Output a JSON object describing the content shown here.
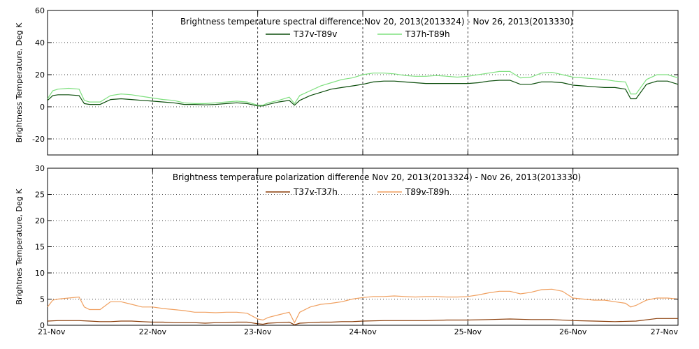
{
  "chart_data": [
    {
      "type": "line",
      "title": "Brightness temperature spectral difference     Nov 20, 2013(2013324) - Nov 26, 2013(2013330)",
      "ylabel": "Brightness Temperature, Deg K",
      "xlim": [
        0,
        6
      ],
      "ylim": [
        -30,
        60
      ],
      "yticks": [
        -20,
        0,
        20,
        40,
        60
      ],
      "xtick_labels": [
        "21-Nov",
        "22-Nov",
        "23-Nov",
        "24-Nov",
        "25-Nov",
        "26-Nov",
        "27-Nov"
      ],
      "grid": true,
      "series": [
        {
          "name": "T37v-T89v",
          "color": "#0b4d0b",
          "x": [
            0.0,
            0.05,
            0.1,
            0.2,
            0.3,
            0.35,
            0.4,
            0.5,
            0.6,
            0.7,
            0.8,
            0.9,
            1.0,
            1.1,
            1.2,
            1.3,
            1.4,
            1.5,
            1.6,
            1.7,
            1.8,
            1.9,
            2.0,
            2.05,
            2.1,
            2.2,
            2.3,
            2.35,
            2.4,
            2.5,
            2.6,
            2.7,
            2.8,
            2.9,
            3.0,
            3.1,
            3.2,
            3.3,
            3.4,
            3.5,
            3.6,
            3.7,
            3.8,
            3.9,
            4.0,
            4.1,
            4.2,
            4.3,
            4.4,
            4.5,
            4.6,
            4.7,
            4.8,
            4.9,
            5.0,
            5.1,
            5.2,
            5.3,
            5.4,
            5.5,
            5.55,
            5.6,
            5.7,
            5.8,
            5.9,
            6.0
          ],
          "values": [
            4,
            7,
            7.5,
            7.5,
            7,
            2,
            1.5,
            1.5,
            4.5,
            5,
            4.5,
            4,
            3.5,
            3,
            2.5,
            1.5,
            1.5,
            1.2,
            1.5,
            2,
            2.5,
            2,
            0.5,
            0.5,
            1.5,
            3,
            4,
            1,
            4,
            7,
            9,
            11,
            12,
            13,
            14,
            15.5,
            16,
            16,
            15.5,
            15,
            14.5,
            14.5,
            14.5,
            14.5,
            14.5,
            15,
            16,
            16.5,
            16.5,
            14,
            14,
            15.5,
            15.5,
            15,
            13.5,
            13,
            12.5,
            12,
            12,
            11,
            5,
            5,
            14,
            16,
            16,
            14
          ]
        },
        {
          "name": "T37h-T89h",
          "color": "#7fe07f",
          "x": [
            0.0,
            0.05,
            0.1,
            0.2,
            0.3,
            0.35,
            0.4,
            0.5,
            0.6,
            0.7,
            0.8,
            0.9,
            1.0,
            1.1,
            1.2,
            1.3,
            1.4,
            1.5,
            1.6,
            1.7,
            1.8,
            1.9,
            2.0,
            2.05,
            2.1,
            2.2,
            2.3,
            2.35,
            2.4,
            2.5,
            2.6,
            2.7,
            2.8,
            2.9,
            3.0,
            3.1,
            3.2,
            3.3,
            3.4,
            3.5,
            3.6,
            3.7,
            3.8,
            3.9,
            4.0,
            4.1,
            4.2,
            4.3,
            4.4,
            4.5,
            4.6,
            4.7,
            4.8,
            4.9,
            5.0,
            5.1,
            5.2,
            5.3,
            5.4,
            5.5,
            5.55,
            5.6,
            5.7,
            5.8,
            5.9,
            6.0
          ],
          "values": [
            5,
            10,
            11,
            11.5,
            11,
            4,
            3,
            3,
            7,
            8,
            7.5,
            6.5,
            5.5,
            4.5,
            4,
            2.5,
            2,
            2,
            2.5,
            3,
            3.5,
            3,
            1,
            1,
            2.5,
            4,
            6,
            2,
            7,
            10,
            13,
            15,
            17,
            18,
            20,
            21,
            21,
            20.5,
            19.5,
            19,
            19,
            19.5,
            19,
            18.5,
            19,
            20,
            21,
            22,
            22,
            18,
            18.5,
            21,
            21.5,
            20,
            18.5,
            18,
            17.5,
            17,
            16,
            15.5,
            8,
            8,
            17,
            20,
            20,
            18
          ]
        }
      ]
    },
    {
      "type": "line",
      "title": "Brightness temperature polarization difference     Nov 20, 2013(2013324) - Nov 26, 2013(2013330)",
      "ylabel": "Brightnes Temperature, Deg K",
      "xlim": [
        0,
        6
      ],
      "ylim": [
        0,
        30
      ],
      "yticks": [
        0,
        5,
        10,
        15,
        20,
        25,
        30
      ],
      "xtick_labels": [
        "21-Nov",
        "22-Nov",
        "23-Nov",
        "24-Nov",
        "25-Nov",
        "26-Nov",
        "27-Nov"
      ],
      "grid": true,
      "series": [
        {
          "name": "T37v-T37h",
          "color": "#8b3e0a",
          "x": [
            0.0,
            0.1,
            0.2,
            0.3,
            0.4,
            0.5,
            0.6,
            0.7,
            0.8,
            0.9,
            1.0,
            1.1,
            1.2,
            1.3,
            1.4,
            1.5,
            1.6,
            1.7,
            1.8,
            1.9,
            2.0,
            2.05,
            2.1,
            2.2,
            2.3,
            2.35,
            2.4,
            2.5,
            2.6,
            2.7,
            2.8,
            2.9,
            3.0,
            3.2,
            3.4,
            3.6,
            3.8,
            4.0,
            4.2,
            4.4,
            4.6,
            4.8,
            5.0,
            5.2,
            5.4,
            5.6,
            5.8,
            6.0
          ],
          "values": [
            0.8,
            0.9,
            0.9,
            0.9,
            0.8,
            0.7,
            0.7,
            0.8,
            0.8,
            0.7,
            0.6,
            0.6,
            0.5,
            0.5,
            0.5,
            0.4,
            0.5,
            0.5,
            0.6,
            0.6,
            0.3,
            0.2,
            0.4,
            0.5,
            0.6,
            0.1,
            0.4,
            0.5,
            0.6,
            0.6,
            0.7,
            0.7,
            0.8,
            0.9,
            0.9,
            0.9,
            1.0,
            1.0,
            1.1,
            1.2,
            1.1,
            1.1,
            0.9,
            0.8,
            0.7,
            0.8,
            1.3,
            1.3
          ]
        },
        {
          "name": "T89v-T89h",
          "color": "#f0a060",
          "x": [
            0.0,
            0.05,
            0.1,
            0.2,
            0.3,
            0.35,
            0.4,
            0.5,
            0.6,
            0.7,
            0.8,
            0.9,
            1.0,
            1.1,
            1.2,
            1.3,
            1.4,
            1.5,
            1.6,
            1.7,
            1.8,
            1.9,
            2.0,
            2.05,
            2.1,
            2.2,
            2.3,
            2.35,
            2.4,
            2.5,
            2.6,
            2.7,
            2.8,
            2.9,
            3.0,
            3.1,
            3.2,
            3.3,
            3.4,
            3.5,
            3.6,
            3.7,
            3.8,
            3.9,
            4.0,
            4.1,
            4.2,
            4.3,
            4.4,
            4.5,
            4.6,
            4.7,
            4.8,
            4.9,
            5.0,
            5.1,
            5.2,
            5.3,
            5.4,
            5.5,
            5.55,
            5.6,
            5.7,
            5.8,
            5.9,
            6.0
          ],
          "values": [
            3.5,
            4.8,
            5,
            5.2,
            5.4,
            3.5,
            3,
            3,
            4.5,
            4.5,
            4,
            3.5,
            3.5,
            3.2,
            3,
            2.8,
            2.5,
            2.5,
            2.4,
            2.5,
            2.5,
            2.3,
            1.2,
            1.0,
            1.5,
            2.0,
            2.5,
            0.5,
            2.5,
            3.5,
            4.0,
            4.2,
            4.5,
            5.0,
            5.3,
            5.5,
            5.5,
            5.6,
            5.5,
            5.4,
            5.5,
            5.5,
            5.4,
            5.4,
            5.5,
            5.8,
            6.2,
            6.5,
            6.5,
            6.0,
            6.3,
            6.8,
            6.9,
            6.5,
            5.2,
            5.0,
            4.8,
            4.8,
            4.5,
            4.2,
            3.5,
            3.8,
            4.8,
            5.2,
            5.2,
            5.0
          ]
        }
      ]
    }
  ]
}
